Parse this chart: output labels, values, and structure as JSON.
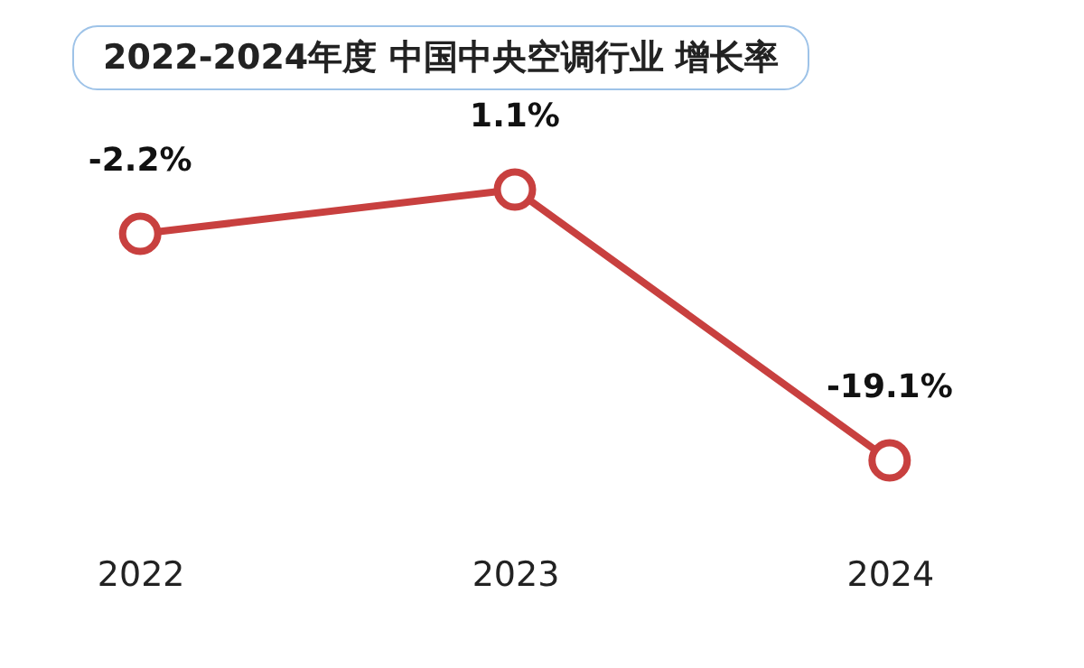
{
  "chart_data": {
    "type": "line",
    "title": "2022-2024年度 中国中央空调行业 增长率",
    "categories": [
      "2022",
      "2023",
      "2024"
    ],
    "series": [
      {
        "color": "#c8403f",
        "values": [
          -2.2,
          1.1,
          -19.1
        ],
        "value_labels": [
          "-2.2%",
          "1.1%",
          "-19.1%"
        ]
      }
    ],
    "marker": "circle",
    "line_style": "solid",
    "grid": false
  }
}
